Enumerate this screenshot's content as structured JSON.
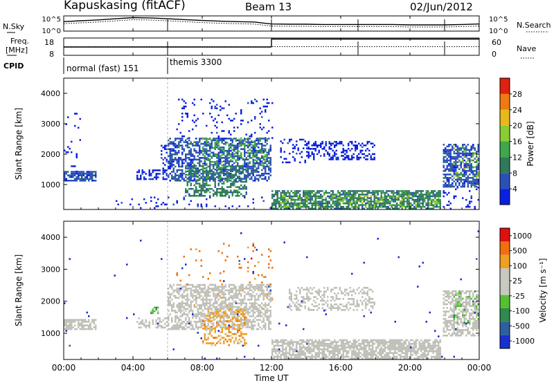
{
  "header": {
    "station": "Kapuskasing (fitACF)",
    "beam": "Beam 13",
    "date": "02/Jun/2012"
  },
  "side_labels": {
    "nsky": "N.Sky",
    "nsearch": "N.Search",
    "freq_line1": "Freq.",
    "freq_line2": "[MHz]",
    "nave": "Nave",
    "cpid": "CPID"
  },
  "chart_data": [
    {
      "type": "line",
      "name": "noise",
      "ylabel_left": "N.Sky",
      "ylabel_right": "N.Search",
      "yticks_left": [
        "10^5",
        "10^0"
      ],
      "yticks_right": [
        "10^5",
        "10^0"
      ],
      "scale": "log",
      "x_hours": [
        0,
        1,
        2,
        3,
        4,
        5,
        6,
        7,
        8,
        9,
        10,
        11,
        12,
        13,
        14,
        15,
        16,
        17,
        18,
        19,
        20,
        21,
        22,
        23,
        24
      ],
      "nsky": [
        2000,
        4000,
        8000,
        20000,
        50000,
        40000,
        20000,
        10000,
        5000,
        3000,
        2000,
        1500,
        300,
        250,
        250,
        200,
        200,
        200,
        200,
        200,
        150,
        150,
        150,
        200,
        300
      ]
    },
    {
      "type": "line",
      "name": "frequency",
      "ylabel_left": "Freq. [MHz]",
      "ylabel_right": "Nave",
      "yticks_left": [
        "18",
        "8"
      ],
      "yticks_right": [
        "60",
        "0"
      ],
      "freq_segments": [
        {
          "start": 0,
          "end": 12,
          "value": 12.8
        },
        {
          "start": 12,
          "end": 24,
          "value": 17.4
        }
      ],
      "nave_level": 30
    },
    {
      "type": "table",
      "name": "cpid",
      "segments": [
        {
          "start": 0,
          "end": 6.0,
          "label": "normal (fast) 151"
        },
        {
          "start": 6.0,
          "end": 24,
          "label": "themis 3300"
        }
      ]
    },
    {
      "type": "heatmap",
      "name": "power",
      "xlabel": "",
      "ylabel": "Slant Range [km]",
      "ylim": [
        180,
        4500
      ],
      "yticks": [
        1000,
        2000,
        3000,
        4000
      ],
      "colorbar": {
        "label": "Power [dB]",
        "ticks": [
          "4",
          "8",
          "12",
          "16",
          "20",
          "24",
          "28"
        ],
        "colors": [
          "#0a1fe0",
          "#2a50b8",
          "#2f7a5a",
          "#3fa84a",
          "#8ccc33",
          "#e8b81a",
          "#f07a12",
          "#e02010"
        ]
      },
      "regions": [
        {
          "t0": 0.0,
          "t1": 1.9,
          "r0": 1100,
          "r1": 1400,
          "level": 1,
          "density": 0.8
        },
        {
          "t0": 0.0,
          "t1": 1.0,
          "r0": 1400,
          "r1": 3400,
          "level": 0,
          "density": 0.05
        },
        {
          "t0": 4.2,
          "t1": 5.9,
          "r0": 1150,
          "r1": 1450,
          "level": 0,
          "density": 0.45
        },
        {
          "t0": 5.6,
          "t1": 6.4,
          "r0": 1500,
          "r1": 2300,
          "level": 0,
          "density": 0.3
        },
        {
          "t0": 6.0,
          "t1": 11.9,
          "r0": 1100,
          "r1": 2500,
          "level": 1,
          "density": 0.55
        },
        {
          "t0": 7.0,
          "t1": 10.5,
          "r0": 600,
          "r1": 1600,
          "level": 2,
          "density": 0.5
        },
        {
          "t0": 8.0,
          "t1": 11.8,
          "r0": 1600,
          "r1": 2500,
          "level": 3,
          "density": 0.25
        },
        {
          "t0": 6.5,
          "t1": 12.0,
          "r0": 2500,
          "r1": 3800,
          "level": 0,
          "density": 0.08
        },
        {
          "t0": 3.0,
          "t1": 12.0,
          "r0": 200,
          "r1": 550,
          "level": 0,
          "density": 0.1
        },
        {
          "t0": 12.0,
          "t1": 21.8,
          "r0": 180,
          "r1": 800,
          "level": 2,
          "density": 0.75
        },
        {
          "t0": 12.5,
          "t1": 21.8,
          "r0": 250,
          "r1": 650,
          "level": 4,
          "density": 0.18
        },
        {
          "t0": 14.0,
          "t1": 18.0,
          "r0": 1800,
          "r1": 2400,
          "level": 0,
          "density": 0.35
        },
        {
          "t0": 12.5,
          "t1": 14.0,
          "r0": 1700,
          "r1": 2500,
          "level": 0,
          "density": 0.2
        },
        {
          "t0": 21.9,
          "t1": 24.0,
          "r0": 900,
          "r1": 2300,
          "level": 1,
          "density": 0.65
        },
        {
          "t0": 22.5,
          "t1": 24.0,
          "r0": 1200,
          "r1": 2200,
          "level": 4,
          "density": 0.15
        },
        {
          "t0": 21.9,
          "t1": 24.0,
          "r0": 180,
          "r1": 900,
          "level": 0,
          "density": 0.08
        }
      ]
    },
    {
      "type": "heatmap",
      "name": "velocity",
      "xlabel": "Time UT",
      "ylabel": "Slant Range [km]",
      "ylim": [
        180,
        4500
      ],
      "yticks": [
        1000,
        2000,
        3000,
        4000
      ],
      "xticks": [
        "00:00",
        "04:00",
        "08:00",
        "12:00",
        "16:00",
        "20:00",
        "00:00"
      ],
      "colorbar": {
        "label": "Velocity [m s⁻¹]",
        "ticks": [
          "1000",
          "500",
          "100",
          "25",
          "-25",
          "-100",
          "-500",
          "-1000"
        ],
        "colors": [
          "#1a2fd0",
          "#2f5fa0",
          "#2f8a4f",
          "#55c033",
          "#c8c8c0",
          "#c8c8c0",
          "#f0a020",
          "#f07010",
          "#e01010"
        ],
        "ground_scatter": "#c0c0b8"
      },
      "regions": [
        {
          "t0": 0.0,
          "t1": 1.9,
          "r0": 1100,
          "r1": 1400,
          "level": 4,
          "density": 0.8
        },
        {
          "t0": 4.2,
          "t1": 5.9,
          "r0": 1150,
          "r1": 1450,
          "level": 4,
          "density": 0.4
        },
        {
          "t0": 6.0,
          "t1": 11.9,
          "r0": 1100,
          "r1": 2500,
          "level": 4,
          "density": 0.55
        },
        {
          "t0": 8.0,
          "t1": 10.5,
          "r0": 600,
          "r1": 1700,
          "level": 6,
          "density": 0.3
        },
        {
          "t0": 7.0,
          "t1": 12.0,
          "r0": 1500,
          "r1": 2500,
          "level": 5,
          "density": 0.12
        },
        {
          "t0": 6.5,
          "t1": 12.0,
          "r0": 2500,
          "r1": 3800,
          "level": 7,
          "density": 0.04
        },
        {
          "t0": 12.0,
          "t1": 21.8,
          "r0": 180,
          "r1": 800,
          "level": 4,
          "density": 0.75
        },
        {
          "t0": 13.0,
          "t1": 18.0,
          "r0": 1700,
          "r1": 2400,
          "level": 4,
          "density": 0.35
        },
        {
          "t0": 21.9,
          "t1": 24.0,
          "r0": 900,
          "r1": 2300,
          "level": 4,
          "density": 0.6
        },
        {
          "t0": 22.5,
          "t1": 24.0,
          "r0": 1300,
          "r1": 2300,
          "level": 3,
          "density": 0.15
        },
        {
          "t0": 5.0,
          "t1": 5.4,
          "r0": 1600,
          "r1": 1800,
          "level": 3,
          "density": 0.6
        },
        {
          "t0": 0.0,
          "t1": 24.0,
          "r0": 180,
          "r1": 4500,
          "level": 0,
          "density": 0.004
        }
      ]
    }
  ]
}
